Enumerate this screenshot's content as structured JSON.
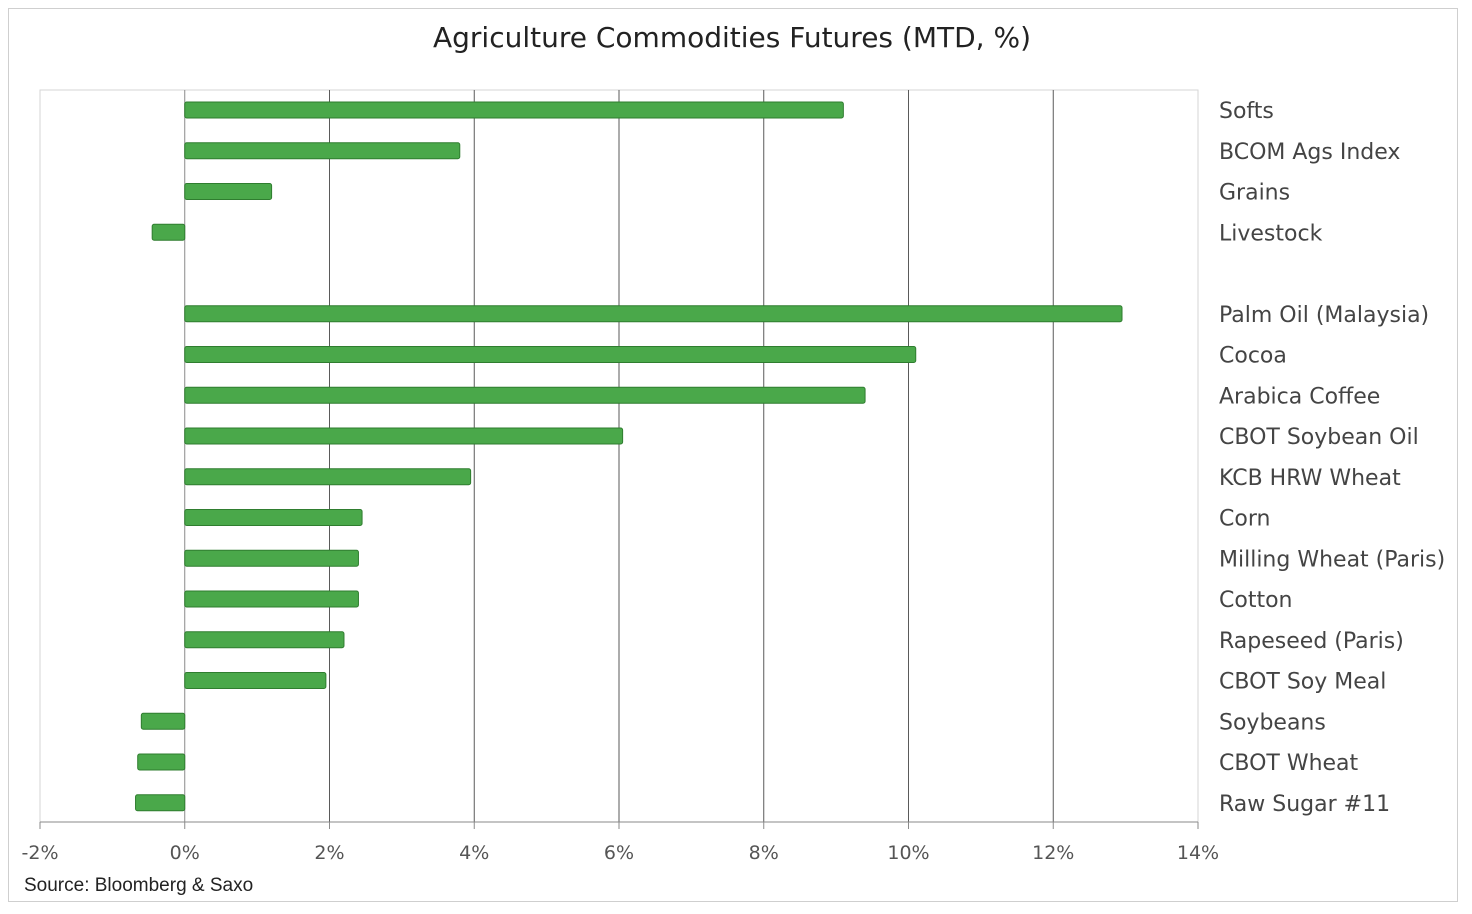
{
  "chart_data": {
    "type": "bar",
    "orientation": "horizontal",
    "title": "Agriculture Commodities Futures (MTD, %)",
    "source": "Source: Bloomberg & Saxo",
    "xlim": [
      -2,
      14
    ],
    "x_ticks": [
      -2,
      0,
      2,
      4,
      6,
      8,
      10,
      12,
      14
    ],
    "x_tick_labels": [
      "-2%",
      "0%",
      "2%",
      "4%",
      "6%",
      "8%",
      "10%",
      "12%",
      "14%"
    ],
    "grid": "vertical",
    "category_labels_position": "right",
    "bar_color": "#4aa84a",
    "groups": [
      {
        "categories": [
          "Softs",
          "BCOM Ags Index",
          "Grains",
          "Livestock"
        ],
        "values": [
          9.1,
          3.8,
          1.2,
          -0.45
        ]
      },
      {
        "categories": [
          "Palm Oil (Malaysia)",
          "Cocoa",
          "Arabica Coffee",
          "CBOT Soybean Oil",
          "KCB HRW Wheat",
          "Corn",
          "Milling Wheat (Paris)",
          "Cotton",
          "Rapeseed (Paris)",
          "CBOT Soy Meal",
          "Soybeans",
          "CBOT Wheat",
          "Raw Sugar #11"
        ],
        "values": [
          12.95,
          10.1,
          9.4,
          6.05,
          3.95,
          2.45,
          2.4,
          2.4,
          2.2,
          1.95,
          -0.6,
          -0.65,
          -0.68
        ]
      }
    ]
  }
}
